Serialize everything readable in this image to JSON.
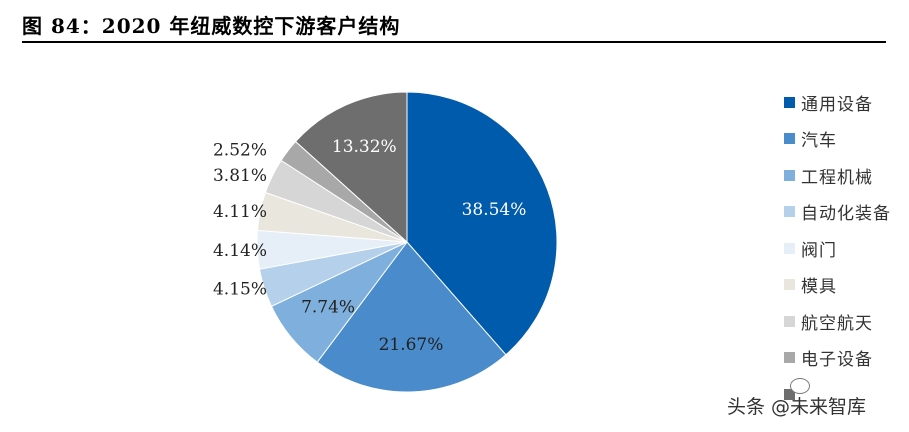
{
  "title": "图 84：2020 年纽威数控下游客户结构",
  "watermark": "头条 @未来智库",
  "chart_data": {
    "type": "pie",
    "categories": [
      "通用设备",
      "汽车",
      "工程机械",
      "自动化装备",
      "阀门",
      "模具",
      "航空航天",
      "电子设备",
      ""
    ],
    "values": [
      38.54,
      21.67,
      7.74,
      4.15,
      4.14,
      4.11,
      3.81,
      2.52,
      13.32
    ],
    "labels": [
      "38.54%",
      "21.67%",
      "7.74%",
      "4.15%",
      "4.14%",
      "4.11%",
      "3.81%",
      "2.52%",
      "13.32%"
    ],
    "colors": [
      "#005BAC",
      "#4A8BCB",
      "#7FB0DD",
      "#B4D0EA",
      "#E6EEF7",
      "#E9E6DD",
      "#D6D6D6",
      "#A8A8A8",
      "#6E6E6E"
    ],
    "legend_position": "right"
  }
}
